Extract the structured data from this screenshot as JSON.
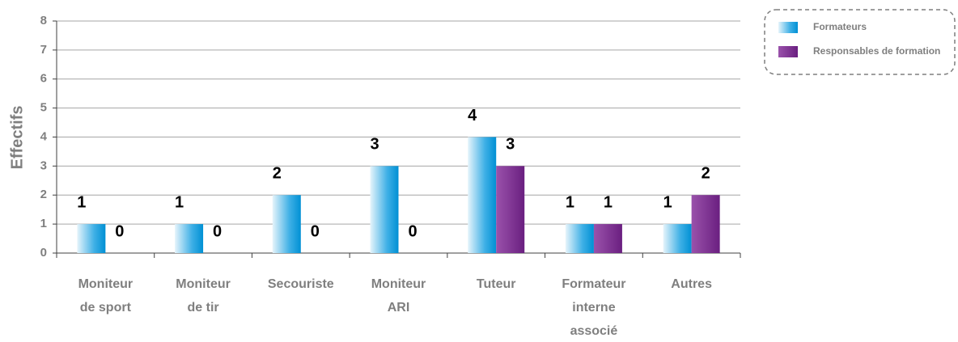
{
  "chart_data": {
    "type": "bar",
    "y_label": "Effectifs",
    "categories": [
      [
        "Moniteur",
        "de sport"
      ],
      [
        "Moniteur",
        "de tir"
      ],
      [
        "Secouriste"
      ],
      [
        "Moniteur",
        "ARI"
      ],
      [
        "Tuteur"
      ],
      [
        "Formateur",
        "interne",
        "associé"
      ],
      [
        "Autres"
      ]
    ],
    "series": [
      {
        "name": "Formateurs",
        "color": "#0096d6",
        "values": [
          1,
          1,
          2,
          3,
          4,
          1,
          1
        ]
      },
      {
        "name": "Responsables de formation",
        "color": "#7b2a8f",
        "values": [
          0,
          0,
          0,
          0,
          3,
          1,
          2
        ]
      }
    ],
    "ylim": [
      0,
      8
    ],
    "yticks": [
      0,
      1,
      2,
      3,
      4,
      5,
      6,
      7,
      8
    ],
    "grid": true,
    "legend": "top-right"
  }
}
